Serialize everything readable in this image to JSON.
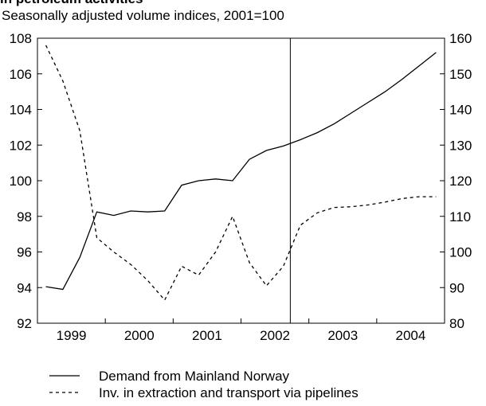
{
  "chart_data": {
    "type": "line",
    "title": "in petroleum activities",
    "subtitle": "Seasonally adjusted volume indices, 2001=100",
    "categories": [
      "1999",
      null,
      null,
      null,
      "2000",
      null,
      null,
      null,
      "2001",
      null,
      null,
      null,
      "2002",
      null,
      null,
      null,
      "2003",
      null,
      null,
      null,
      "2004",
      null,
      null,
      null
    ],
    "ylim": [
      92,
      108
    ],
    "yticks": [
      92,
      94,
      96,
      98,
      100,
      102,
      104,
      106,
      108
    ],
    "y2lim": [
      80,
      160
    ],
    "y2ticks": [
      80,
      90,
      100,
      110,
      120,
      130,
      140,
      150,
      160
    ],
    "series": [
      {
        "name": "Demand from Mainland Norway",
        "color": "#000000",
        "dash": "solid",
        "values": [
          94.05,
          93.9,
          95.7,
          98.25,
          98.05,
          98.3,
          98.25,
          98.3,
          99.75,
          100.0,
          100.1,
          100.0,
          101.2,
          101.7,
          101.95,
          102.3,
          102.7,
          103.2,
          103.8,
          104.4,
          105.0,
          105.7,
          106.45,
          107.2
        ]
      },
      {
        "name": "Inv. in extraction and transport via pipelines",
        "color": "#000000",
        "dash": "dashed",
        "axis": "y2",
        "values": [
          158,
          148,
          134,
          104,
          100,
          96.5,
          92,
          86.5,
          96,
          93.5,
          100,
          110,
          97,
          90.5,
          96,
          107.5,
          111,
          112.5,
          112.7,
          113.2,
          114,
          115,
          115.5,
          115.5
        ]
      }
    ]
  }
}
